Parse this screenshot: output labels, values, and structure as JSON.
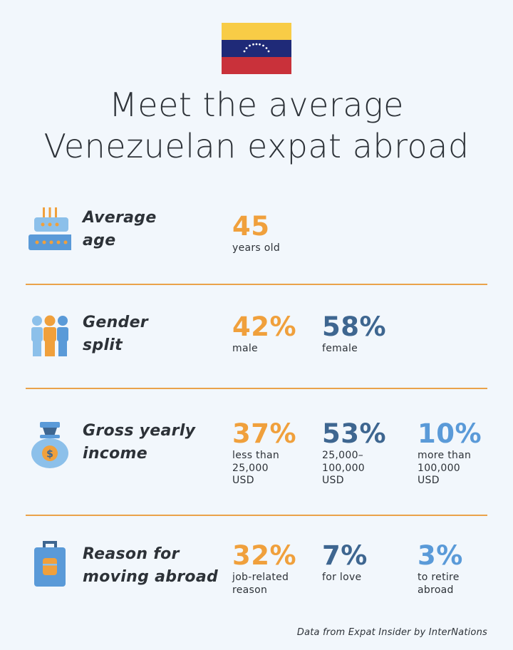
{
  "title": {
    "line1": "Meet the average",
    "line2": "Venezuelan expat abroad"
  },
  "flag": {
    "colors": [
      "#f8cc46",
      "#1f2a78",
      "#c9313a"
    ],
    "country": "Venezuela"
  },
  "sections": [
    {
      "icon": "birthday-cake-icon",
      "label": [
        "Average",
        "age"
      ],
      "stats": [
        {
          "value": "45",
          "desc": [
            "years old"
          ],
          "color": "#f0a03c"
        }
      ]
    },
    {
      "icon": "people-icon",
      "label": [
        "Gender",
        "split"
      ],
      "stats": [
        {
          "value": "42%",
          "desc": [
            "male"
          ],
          "color": "#f0a03c"
        },
        {
          "value": "58%",
          "desc": [
            "female"
          ],
          "color": "#3e6690"
        }
      ]
    },
    {
      "icon": "money-bag-icon",
      "label": [
        "Gross yearly",
        "income"
      ],
      "stats": [
        {
          "value": "37%",
          "desc": [
            "less than",
            "25,000",
            "USD"
          ],
          "color": "#f0a03c"
        },
        {
          "value": "53%",
          "desc": [
            "25,000–",
            "100,000",
            "USD"
          ],
          "color": "#3e6690"
        },
        {
          "value": "10%",
          "desc": [
            "more than",
            "100,000",
            "USD"
          ],
          "color": "#5a9ad8"
        }
      ]
    },
    {
      "icon": "suitcase-icon",
      "label": [
        "Reason for",
        "moving abroad"
      ],
      "stats": [
        {
          "value": "32%",
          "desc": [
            "job-related",
            "reason"
          ],
          "color": "#f0a03c"
        },
        {
          "value": "7%",
          "desc": [
            "for love"
          ],
          "color": "#3e6690"
        },
        {
          "value": "3%",
          "desc": [
            "to retire",
            "abroad"
          ],
          "color": "#5a9ad8"
        }
      ]
    }
  ],
  "footer": "Data from Expat Insider by InterNations",
  "accent_color": "#eaa24a"
}
